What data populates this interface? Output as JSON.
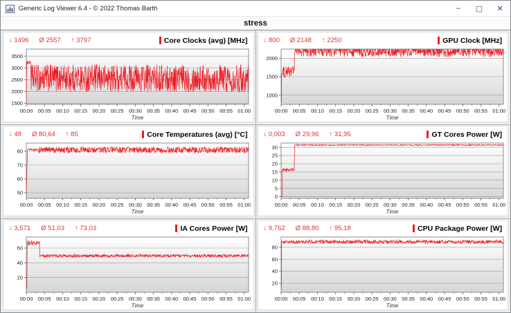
{
  "window": {
    "title": "Generic Log Viewer 6.4 - © 2022 Thomas Barth",
    "controls": {
      "minimize": "–",
      "maximize": "▢",
      "close": "✕"
    }
  },
  "header": {
    "title": "stress"
  },
  "colors": {
    "stats_red": "#dc3232",
    "line_red": "#ed1c24",
    "grid_line": "#9a9a9a",
    "plot_border": "#8c8c8c",
    "plot_gradient_top": "#ffffff",
    "plot_gradient_bottom": "#d6d6d6"
  },
  "x_axis": {
    "label": "Time",
    "ticks": [
      "00:00",
      "00:05",
      "00:10",
      "00:15",
      "00:20",
      "00:25",
      "00:30",
      "00:35",
      "00:40",
      "00:45",
      "00:50",
      "00:55",
      "01:00"
    ],
    "tick_interval_minutes": 5
  },
  "chart_data": [
    {
      "type": "line",
      "title": "Core Clocks (avg) [MHz]",
      "stats": {
        "min": "↓ 1496",
        "avg": "Ø 2557",
        "max": "↑ 3797"
      },
      "xlabel": "Time",
      "xlim_minutes": [
        0,
        61.2
      ],
      "ylim": [
        1450,
        3800
      ],
      "y_ticks": [
        1500,
        2000,
        2500,
        3000,
        3500
      ],
      "clip": [
        1496,
        3797
      ],
      "segments": [
        [
          0,
          0.12,
          1500,
          3230,
          30
        ],
        [
          0.12,
          1.25,
          3230,
          3230,
          70
        ],
        [
          1.25,
          61.2,
          2560,
          2560,
          590
        ]
      ]
    },
    {
      "type": "line",
      "title": "GPU Clock [MHz]",
      "stats": {
        "min": "↓ 800",
        "avg": "Ø 2148",
        "max": "↑ 2250"
      },
      "xlabel": "Time",
      "xlim_minutes": [
        0,
        61.2
      ],
      "ylim": [
        750,
        2250
      ],
      "y_ticks": [
        1000,
        1500,
        2000
      ],
      "clip": [
        800,
        2250
      ],
      "segments": [
        [
          0,
          0.12,
          800,
          800,
          40
        ],
        [
          0.12,
          0.4,
          1550,
          1600,
          130
        ],
        [
          0.4,
          3.7,
          1620,
          1660,
          150
        ],
        [
          3.7,
          61.2,
          2200,
          2200,
          170
        ]
      ]
    },
    {
      "type": "line",
      "title": "Core Temperatures (avg) [°C]",
      "stats": {
        "min": "↓ 48",
        "avg": "Ø 80,64",
        "max": "↑ 85"
      },
      "xlabel": "Time",
      "xlim_minutes": [
        0,
        61.2
      ],
      "ylim": [
        46,
        86
      ],
      "y_ticks": [
        50,
        60,
        70,
        80
      ],
      "clip": [
        48,
        85
      ],
      "segments": [
        [
          0,
          0.3,
          48,
          80,
          1
        ],
        [
          0.3,
          3.4,
          81,
          81,
          0.8
        ],
        [
          3.4,
          61.2,
          81,
          81,
          2.3
        ]
      ]
    },
    {
      "type": "line",
      "title": "GT Cores Power [W]",
      "stats": {
        "min": "↓ 0,003",
        "avg": "Ø 29,96",
        "max": "↑ 31,95"
      },
      "xlabel": "Time",
      "xlim_minutes": [
        0,
        61.2
      ],
      "ylim": [
        -1,
        32.6
      ],
      "y_ticks": [
        0,
        5,
        10,
        15,
        20,
        25,
        30
      ],
      "clip": [
        0.003,
        31.95
      ],
      "segments": [
        [
          0,
          0.25,
          0.05,
          0.3,
          0.15
        ],
        [
          0.25,
          3.7,
          16.3,
          16.3,
          0.9
        ],
        [
          3.7,
          61.2,
          31.4,
          31.4,
          0.35
        ]
      ]
    },
    {
      "type": "line",
      "title": "IA Cores Power [W]",
      "stats": {
        "min": "↓ 3,571",
        "avg": "Ø 51,03",
        "max": "↑ 73,03"
      },
      "xlabel": "Time",
      "xlim_minutes": [
        0,
        61.2
      ],
      "ylim": [
        0,
        75
      ],
      "y_ticks": [
        20,
        40,
        60
      ],
      "clip": [
        3.571,
        73.03
      ],
      "segments": [
        [
          0,
          0.18,
          4,
          6,
          1
        ],
        [
          0.18,
          3.7,
          67,
          67,
          3.4
        ],
        [
          3.7,
          61.2,
          49.5,
          49.5,
          2.1
        ]
      ]
    },
    {
      "type": "line",
      "title": "CPU Package Power [W]",
      "stats": {
        "min": "↓ 9,762",
        "avg": "Ø 88,80",
        "max": "↑ 95,18"
      },
      "xlabel": "Time",
      "xlim_minutes": [
        0,
        61.2
      ],
      "ylim": [
        5,
        97
      ],
      "y_ticks": [
        20,
        40,
        60,
        80
      ],
      "clip": [
        9.762,
        95.18
      ],
      "segments": [
        [
          0,
          0.15,
          10,
          14,
          2
        ],
        [
          0.15,
          61.2,
          89,
          89,
          3.1
        ]
      ]
    }
  ]
}
